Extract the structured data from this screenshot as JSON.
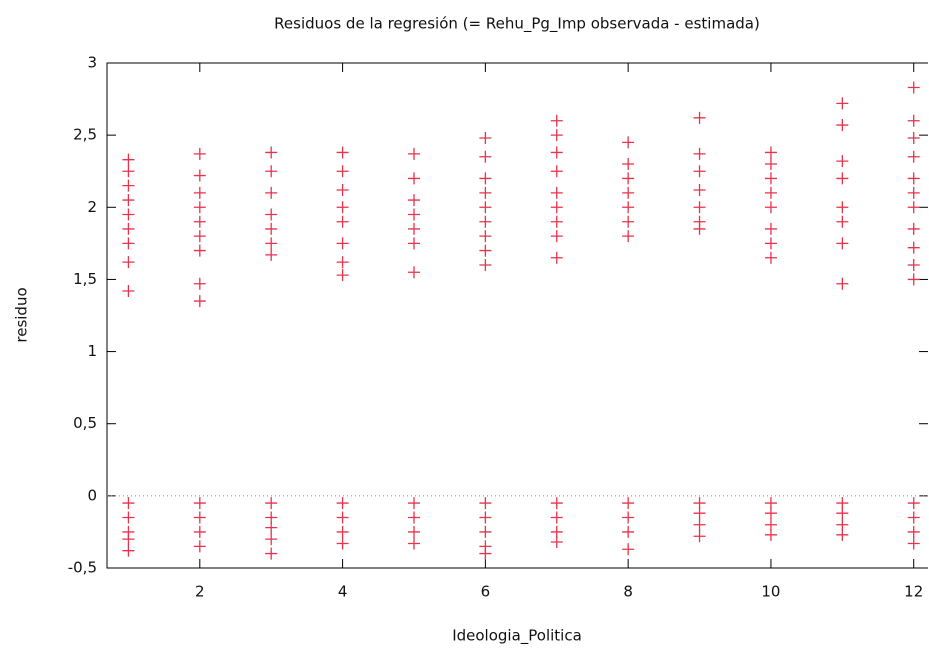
{
  "chart_data": {
    "type": "scatter",
    "title": "Residuos de la regresión (= Rehu_Pg_Imp observada - estimada)",
    "x_label": "Ideologia_Politica",
    "y_label": "residuo",
    "color": "#e8334a",
    "zero_line": true,
    "xlim": [
      0.7,
      12.2
    ],
    "xticks": [
      2,
      4,
      6,
      8,
      10,
      12
    ],
    "ylim": [
      -0.5,
      3
    ],
    "yticks": [
      {
        "value": -0.5,
        "label": "-0,5"
      },
      0,
      {
        "value": 0.5,
        "label": "0,5"
      },
      1,
      {
        "value": 1.5,
        "label": "1,5"
      },
      2,
      {
        "value": 2.5,
        "label": "2,5"
      },
      3
    ],
    "x": [
      1,
      1,
      1,
      1,
      1,
      1,
      1,
      1,
      1,
      1,
      1,
      1,
      1,
      1,
      2,
      2,
      2,
      2,
      2,
      2,
      2,
      2,
      2,
      2,
      2,
      2,
      2,
      3,
      3,
      3,
      3,
      3,
      3,
      3,
      3,
      3,
      3,
      3,
      3,
      4,
      4,
      4,
      4,
      4,
      4,
      4,
      4,
      4,
      4,
      4,
      4,
      5,
      5,
      5,
      5,
      5,
      5,
      5,
      5,
      5,
      5,
      5,
      6,
      6,
      6,
      6,
      6,
      6,
      6,
      6,
      6,
      6,
      6,
      6,
      6,
      6,
      7,
      7,
      7,
      7,
      7,
      7,
      7,
      7,
      7,
      7,
      7,
      7,
      7,
      8,
      8,
      8,
      8,
      8,
      8,
      8,
      8,
      8,
      8,
      8,
      9,
      9,
      9,
      9,
      9,
      9,
      9,
      9,
      9,
      9,
      9,
      10,
      10,
      10,
      10,
      10,
      10,
      10,
      10,
      10,
      10,
      10,
      10,
      11,
      11,
      11,
      11,
      11,
      11,
      11,
      11,
      11,
      11,
      11,
      11,
      12,
      12,
      12,
      12,
      12,
      12,
      12,
      12,
      12,
      12,
      12,
      12,
      12,
      12,
      12
    ],
    "y": [
      2.33,
      2.25,
      2.15,
      2.05,
      1.95,
      1.85,
      1.75,
      1.62,
      1.42,
      -0.05,
      -0.15,
      -0.25,
      -0.3,
      -0.38,
      2.37,
      2.22,
      2.1,
      2.0,
      1.9,
      1.8,
      1.7,
      1.47,
      1.35,
      -0.05,
      -0.15,
      -0.25,
      -0.35,
      2.38,
      2.25,
      2.1,
      1.95,
      1.85,
      1.75,
      1.67,
      -0.05,
      -0.15,
      -0.22,
      -0.3,
      -0.4,
      2.38,
      2.25,
      2.12,
      2.0,
      1.9,
      1.75,
      1.62,
      1.53,
      -0.05,
      -0.15,
      -0.25,
      -0.33,
      2.37,
      2.2,
      2.05,
      1.95,
      1.85,
      1.75,
      1.55,
      -0.05,
      -0.15,
      -0.25,
      -0.33,
      2.48,
      2.35,
      2.2,
      2.1,
      2.0,
      1.9,
      1.8,
      1.7,
      1.6,
      -0.05,
      -0.15,
      -0.25,
      -0.35,
      -0.4,
      2.6,
      2.5,
      2.38,
      2.25,
      2.1,
      2.0,
      1.9,
      1.8,
      1.65,
      -0.05,
      -0.15,
      -0.25,
      -0.32,
      2.45,
      2.3,
      2.2,
      2.1,
      2.0,
      1.9,
      1.8,
      -0.05,
      -0.15,
      -0.25,
      -0.37,
      2.62,
      2.37,
      2.25,
      2.12,
      2.0,
      1.9,
      1.85,
      -0.05,
      -0.12,
      -0.2,
      -0.28,
      2.38,
      2.3,
      2.2,
      2.1,
      2.0,
      1.85,
      1.75,
      1.65,
      -0.05,
      -0.12,
      -0.2,
      -0.27,
      2.72,
      2.57,
      2.32,
      2.2,
      2.0,
      1.9,
      1.75,
      1.47,
      -0.05,
      -0.12,
      -0.2,
      -0.27,
      2.83,
      2.6,
      2.48,
      2.35,
      2.2,
      2.1,
      2.0,
      1.85,
      1.72,
      1.6,
      1.5,
      -0.05,
      -0.15,
      -0.25,
      -0.33
    ]
  }
}
